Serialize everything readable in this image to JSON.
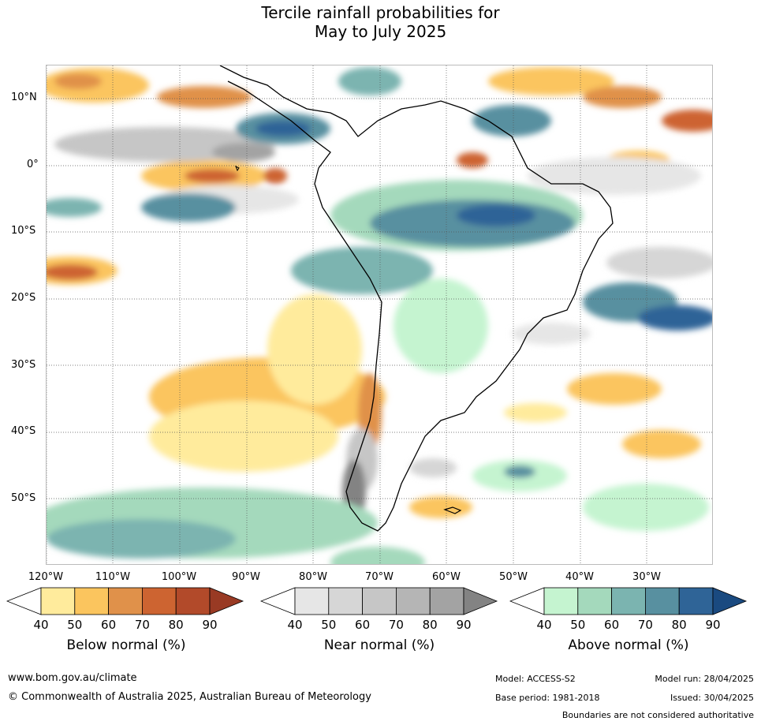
{
  "title": {
    "line1": "Tercile rainfall probabilities for",
    "line2": "May to July 2025"
  },
  "lat_labels": [
    "10°N",
    "0°",
    "10°S",
    "20°S",
    "30°S",
    "40°S",
    "50°S"
  ],
  "lon_labels": [
    "120°W",
    "110°W",
    "100°W",
    "90°W",
    "80°W",
    "70°W",
    "60°W",
    "50°W",
    "40°W",
    "30°W"
  ],
  "colorbars": [
    {
      "title": "Below normal (%)",
      "ticks": [
        "40",
        "50",
        "60",
        "70",
        "80",
        "90"
      ],
      "colors": [
        "#ffeb9c",
        "#fbc55e",
        "#e0914a",
        "#cd6431",
        "#b24a2a",
        "#993a24"
      ]
    },
    {
      "title": "Near normal (%)",
      "ticks": [
        "40",
        "50",
        "60",
        "70",
        "80",
        "90"
      ],
      "colors": [
        "#e6e6e6",
        "#d6d6d6",
        "#c6c6c6",
        "#b5b5b5",
        "#a3a3a3",
        "#838383"
      ]
    },
    {
      "title": "Above normal (%)",
      "ticks": [
        "40",
        "50",
        "60",
        "70",
        "80",
        "90"
      ],
      "colors": [
        "#c5f4d0",
        "#a4d9bc",
        "#7bb4b0",
        "#5890a0",
        "#2f6497",
        "#1a4a80"
      ]
    }
  ],
  "footer": {
    "url": "www.bom.gov.au/climate",
    "copyright": "© Commonwealth of Australia 2025, Australian Bureau of Meteorology",
    "model": "Model: ACCESS-S2",
    "base_period": "Base period: 1981-2018",
    "model_run": "Model run: 28/04/2025",
    "issued": "Issued: 30/04/2025",
    "disclaimer": "Boundaries are not considered authoritative"
  }
}
